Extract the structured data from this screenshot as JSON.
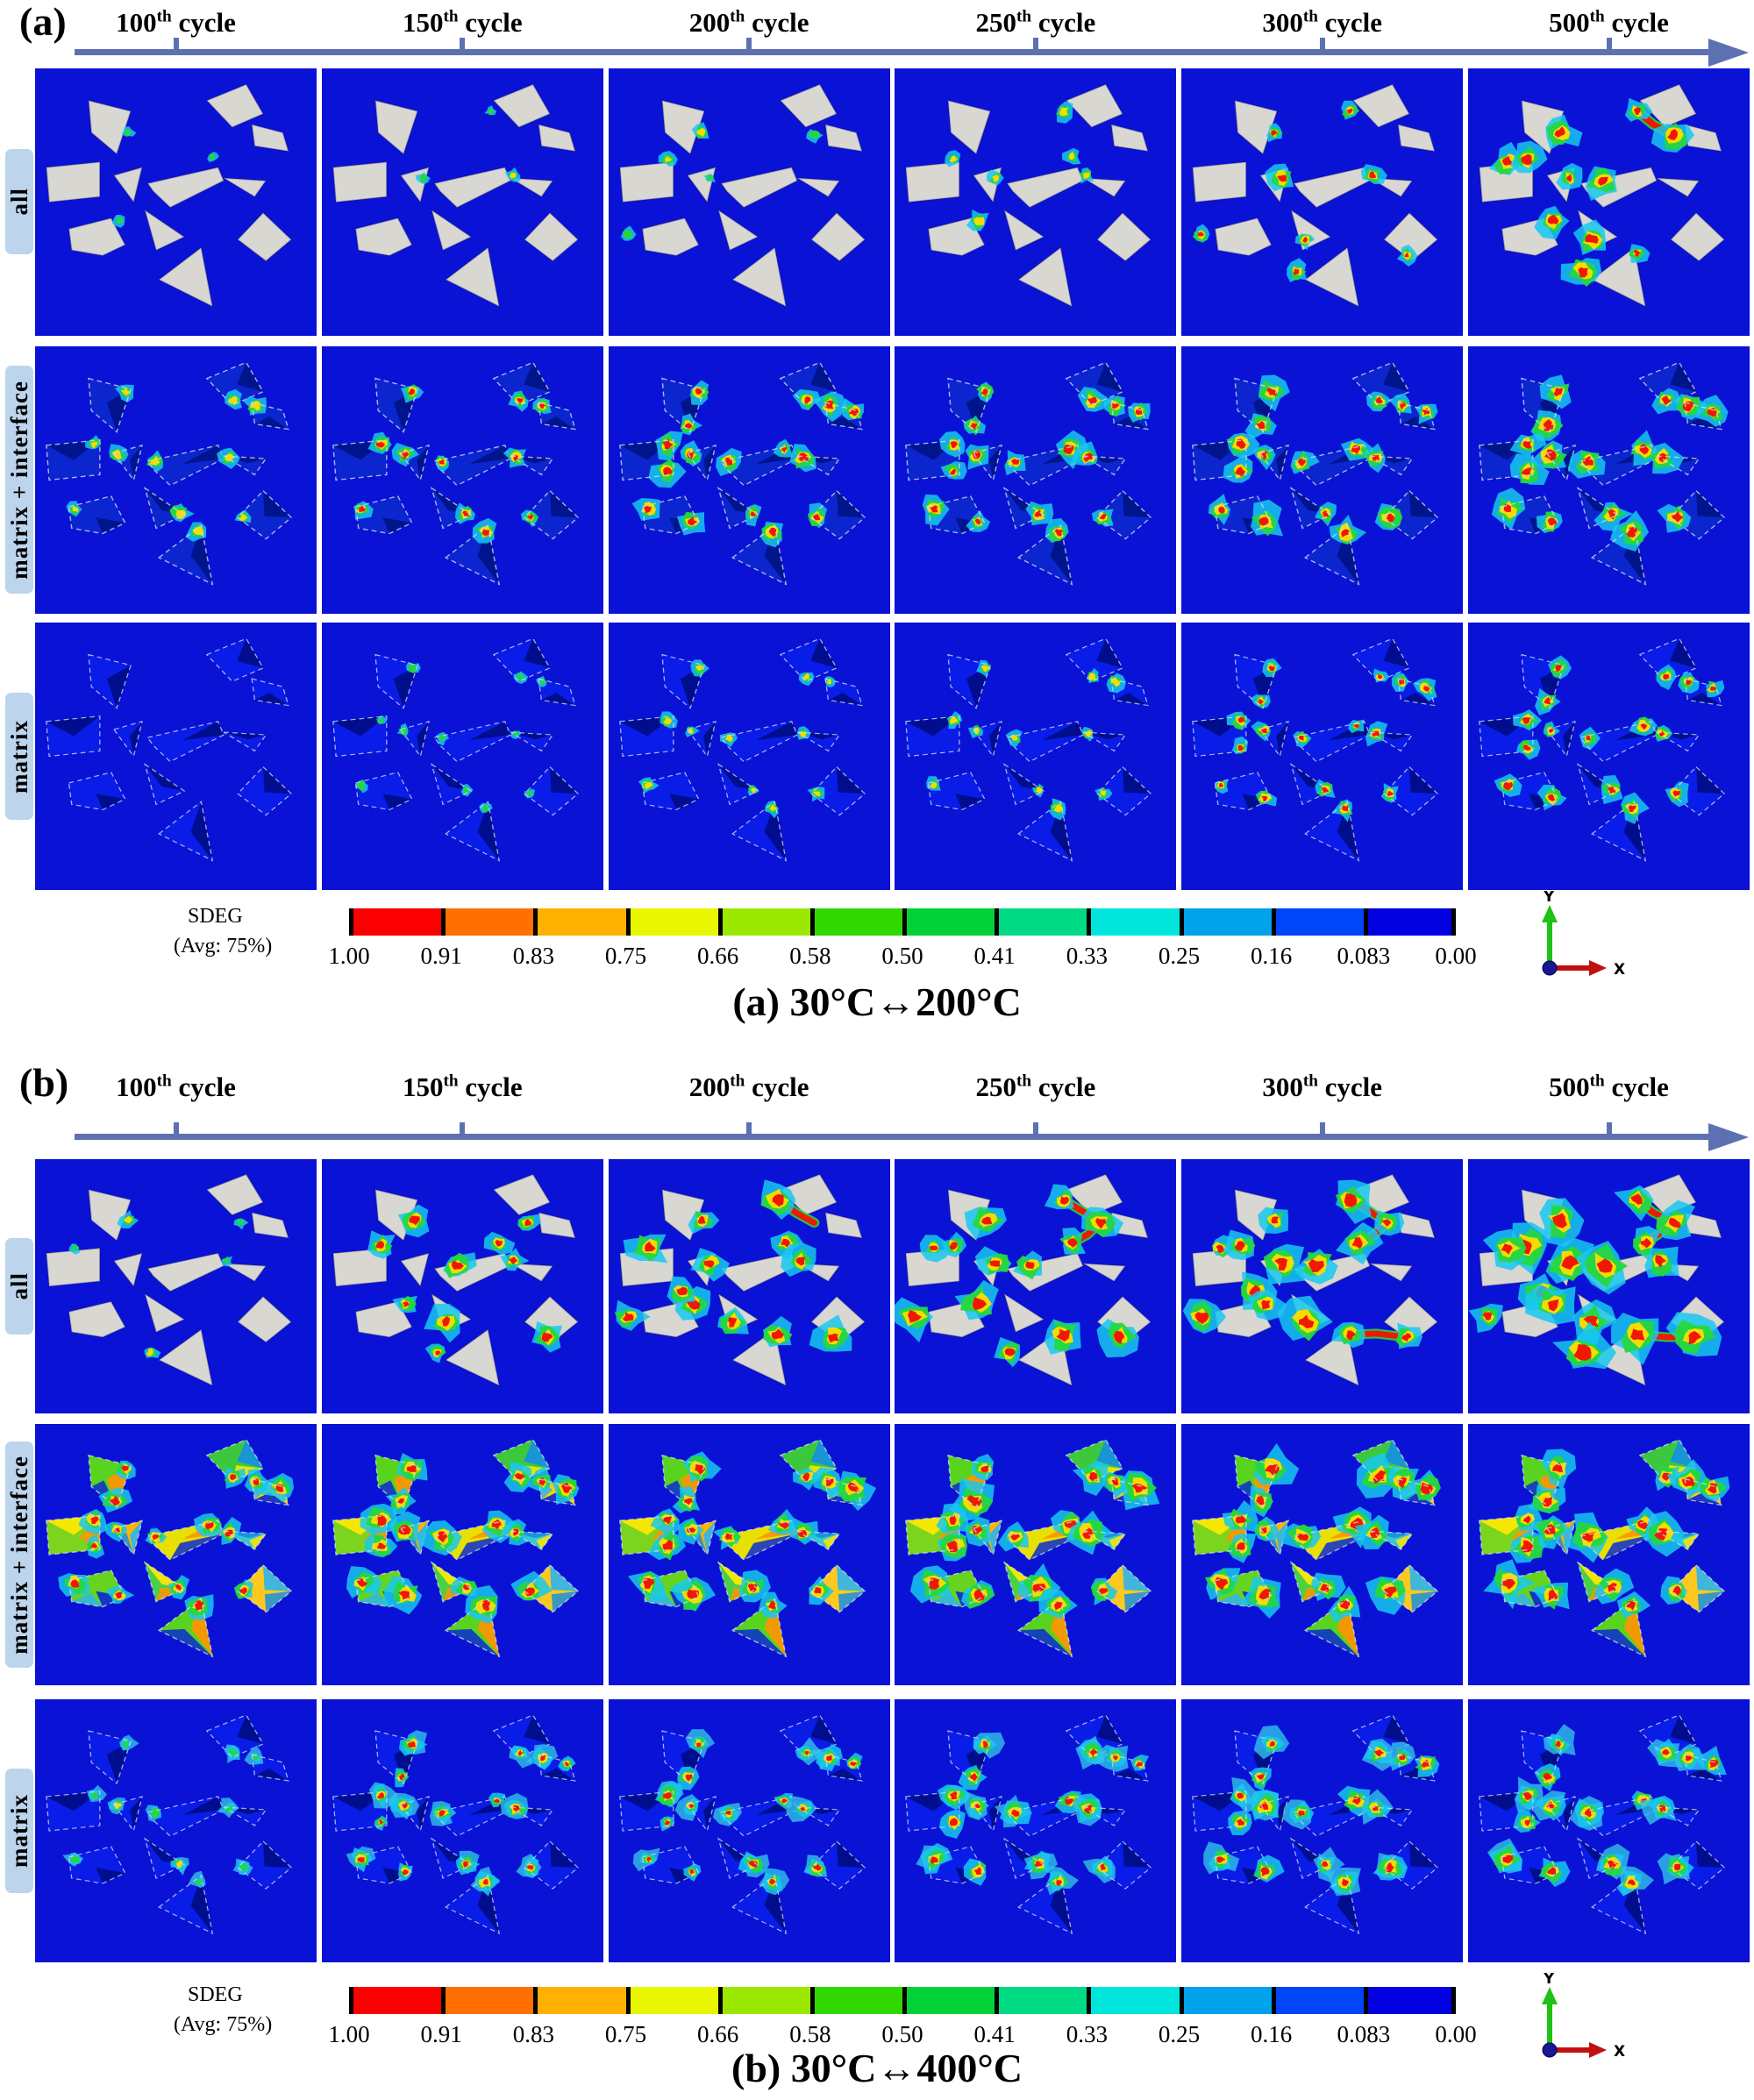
{
  "figure_title": "SDEG damage contour maps over thermal cycles",
  "columns": [
    {
      "value": "100",
      "ordinal": "th",
      "unit": "cycle"
    },
    {
      "value": "150",
      "ordinal": "th",
      "unit": "cycle"
    },
    {
      "value": "200",
      "ordinal": "th",
      "unit": "cycle"
    },
    {
      "value": "250",
      "ordinal": "th",
      "unit": "cycle"
    },
    {
      "value": "300",
      "ordinal": "th",
      "unit": "cycle"
    },
    {
      "value": "500",
      "ordinal": "th",
      "unit": "cycle"
    }
  ],
  "rows": [
    {
      "key": "all",
      "label": "all"
    },
    {
      "key": "mi",
      "label": "matrix + interface"
    },
    {
      "key": "m",
      "label": "matrix"
    }
  ],
  "sections": [
    {
      "id": "a",
      "tag": "(a)",
      "caption": "(a) 30°C↔200°C",
      "damage": {
        "all": [
          0.04,
          0.1,
          0.22,
          0.28,
          0.45,
          0.62
        ],
        "mi": [
          0.38,
          0.46,
          0.6,
          0.66,
          0.8,
          0.88
        ],
        "m": [
          0.1,
          0.22,
          0.38,
          0.44,
          0.62,
          0.75
        ]
      }
    },
    {
      "id": "b",
      "tag": "(b)",
      "caption": "(b) 30°C↔400°C",
      "damage": {
        "all": [
          0.18,
          0.55,
          0.68,
          0.78,
          0.88,
          1.0
        ],
        "mi": [
          0.7,
          0.85,
          0.92,
          0.96,
          1.0,
          1.0
        ],
        "m": [
          0.3,
          0.62,
          0.72,
          0.82,
          0.92,
          1.0
        ]
      }
    }
  ],
  "legend": {
    "title": "SDEG",
    "subtitle": "(Avg: 75%)",
    "tick_labels": [
      "1.00",
      "0.91",
      "0.83",
      "0.75",
      "0.66",
      "0.58",
      "0.50",
      "0.41",
      "0.33",
      "0.25",
      "0.16",
      "0.083",
      "0.00"
    ],
    "band_colors": [
      "#fb0000",
      "#ff7000",
      "#ffb000",
      "#e8f600",
      "#9ae800",
      "#30d800",
      "#00d238",
      "#00da84",
      "#00e6dc",
      "#00a2ec",
      "#0046f8",
      "#0000e0"
    ]
  },
  "triad": {
    "x_label": "X",
    "y_label": "Y",
    "x_color": "#c01010",
    "y_color": "#1fc214",
    "origin_color": "#181896"
  },
  "colors": {
    "matrix_background": "#0a12d6",
    "particle_gray": "#d8d7d2",
    "timeline": "#5d71b2",
    "row_chip_background": "#bcd5ec",
    "interface_particle_base": "#0b26cf",
    "interface_particle_dark": "#001387",
    "matrix_particle_base": "#0a1ce8",
    "matrix_particle_dark": "#000d85",
    "dashed_outline": "#cdd9f4",
    "damage_cyan": "#17c8f0",
    "damage_green": "#26d73e",
    "damage_yellow": "#ffdc00",
    "damage_red": "#f01800",
    "halo_cyan": "#2fc3e8"
  },
  "particles": [
    [
      [
        19,
        12
      ],
      [
        34,
        16
      ],
      [
        29,
        32
      ],
      [
        20,
        24
      ]
    ],
    [
      [
        61,
        12
      ],
      [
        75,
        6
      ],
      [
        81,
        17
      ],
      [
        70,
        22
      ]
    ],
    [
      [
        77,
        21
      ],
      [
        88,
        24
      ],
      [
        90,
        31
      ],
      [
        78,
        29
      ]
    ],
    [
      [
        4,
        37
      ],
      [
        23,
        35
      ],
      [
        23,
        48
      ],
      [
        5,
        50
      ]
    ],
    [
      [
        28,
        40
      ],
      [
        38,
        37
      ],
      [
        35,
        50
      ]
    ],
    [
      [
        40,
        43
      ],
      [
        65,
        37
      ],
      [
        67,
        42
      ],
      [
        48,
        52
      ],
      [
        42,
        46
      ]
    ],
    [
      [
        67,
        41
      ],
      [
        82,
        42
      ],
      [
        78,
        48
      ]
    ],
    [
      [
        12,
        60
      ],
      [
        27,
        56
      ],
      [
        32,
        66
      ],
      [
        24,
        70
      ],
      [
        13,
        68
      ]
    ],
    [
      [
        39,
        53
      ],
      [
        53,
        63
      ],
      [
        43,
        68
      ]
    ],
    [
      [
        81,
        54
      ],
      [
        91,
        64
      ],
      [
        82,
        72
      ],
      [
        72,
        64
      ]
    ],
    [
      [
        44,
        79
      ],
      [
        59,
        67
      ],
      [
        63,
        89
      ]
    ]
  ],
  "hot_vertices": [
    [
      1,
      2
    ],
    [
      3
    ],
    [
      0,
      1
    ],
    [
      1,
      2
    ],
    [
      0
    ],
    [
      0,
      1
    ],
    [
      0
    ],
    [
      0,
      2
    ],
    [
      1
    ],
    [
      3
    ],
    [
      1
    ]
  ],
  "dark_patch": [
    [
      1,
      2
    ],
    [
      1,
      2
    ],
    [
      2,
      3
    ],
    [
      0,
      1
    ],
    [
      1,
      2
    ],
    [
      1,
      2
    ],
    [
      0,
      1
    ],
    [
      2,
      3
    ],
    [
      0,
      1
    ],
    [
      0,
      1
    ],
    [
      1,
      2
    ]
  ],
  "b_mi_palette": [
    "#58d41e",
    "#3cc83c",
    "#ffd000",
    "#7cd41e",
    "#ffb400",
    "#e8e000",
    "#38c8d0",
    "#66d41e",
    "#4ad046",
    "#ffc81e",
    "#58d41e"
  ],
  "b_mi_patch_palette": [
    "#ff9400",
    "#1690e0",
    "#0a2ad4",
    "#ffe800",
    "#30b4ec"
  ],
  "damage_sites": [
    [
      33,
      24
    ],
    [
      21,
      34
    ],
    [
      60,
      16
    ],
    [
      73,
      25
    ],
    [
      14,
      35
    ],
    [
      36,
      41
    ],
    [
      48,
      42
    ],
    [
      63,
      33
    ],
    [
      68,
      40
    ],
    [
      7,
      62
    ],
    [
      30,
      57
    ],
    [
      44,
      64
    ],
    [
      60,
      69
    ],
    [
      80,
      70
    ],
    [
      41,
      76
    ],
    [
      26,
      52
    ]
  ],
  "damage_links": [
    [
      2,
      3
    ],
    [
      3,
      7
    ],
    [
      12,
      13
    ],
    [
      5,
      6
    ],
    [
      10,
      11
    ],
    [
      0,
      5
    ],
    [
      9,
      10
    ]
  ]
}
